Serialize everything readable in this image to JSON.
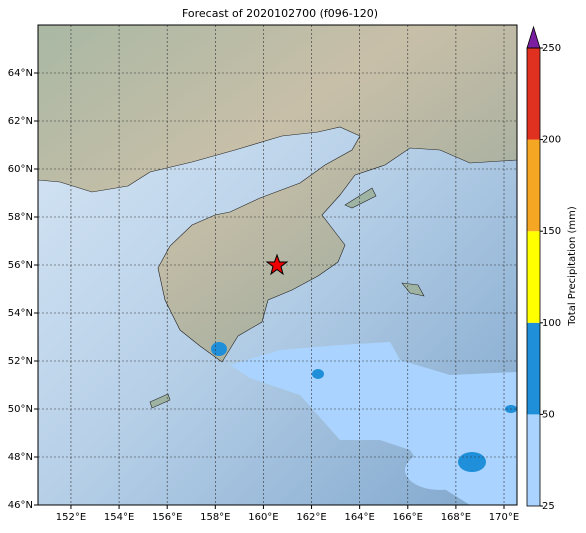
{
  "title": "Forecast of 2020102700 (f096-120)",
  "map": {
    "xlim": [
      150.63,
      170.54
    ],
    "ylim": [
      46,
      66
    ],
    "lon_ticks": [
      {
        "value": 152,
        "label": "152°E"
      },
      {
        "value": 154,
        "label": "154°E"
      },
      {
        "value": 156,
        "label": "156°E"
      },
      {
        "value": 158,
        "label": "158°E"
      },
      {
        "value": 160,
        "label": "160°E"
      },
      {
        "value": 162,
        "label": "162°E"
      },
      {
        "value": 164,
        "label": "164°E"
      },
      {
        "value": 166,
        "label": "166°E"
      },
      {
        "value": 168,
        "label": "168°E"
      },
      {
        "value": 170,
        "label": "170°E"
      }
    ],
    "lat_ticks": [
      {
        "value": 46,
        "label": "46°N"
      },
      {
        "value": 48,
        "label": "48°N"
      },
      {
        "value": 50,
        "label": "50°N"
      },
      {
        "value": 52,
        "label": "52°N"
      },
      {
        "value": 54,
        "label": "54°N"
      },
      {
        "value": 56,
        "label": "56°N"
      },
      {
        "value": 58,
        "label": "58°N"
      },
      {
        "value": 60,
        "label": "60°N"
      },
      {
        "value": 62,
        "label": "62°N"
      },
      {
        "value": 64,
        "label": "64°N"
      }
    ]
  },
  "colorbar": {
    "label": "Total Precipitation (mm)",
    "ticks": [
      25,
      50,
      100,
      150,
      200,
      250
    ],
    "colors": [
      "#aad4ff",
      "#1e8fd8",
      "#ffff00",
      "#f5a623",
      "#e03020"
    ],
    "extend_color": "#7a1fa0"
  }
}
